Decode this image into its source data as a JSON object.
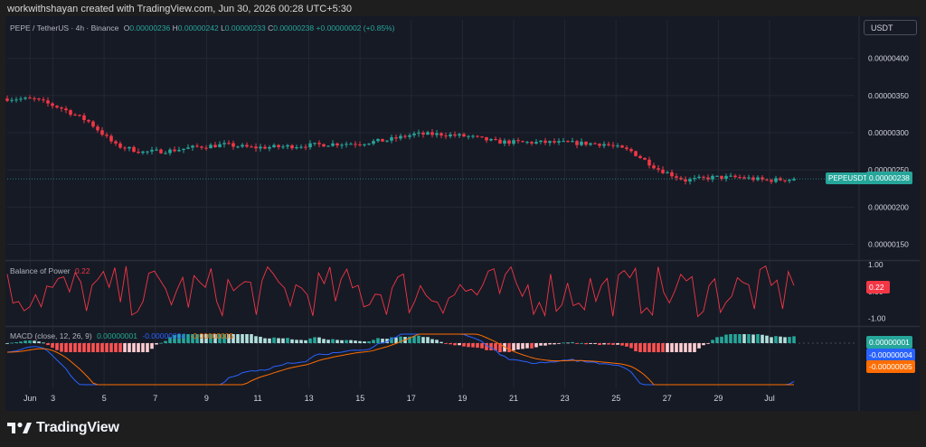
{
  "header": {
    "author_line": "workwithshayan created with TradingView.com, Jun 30, 2026 00:28 UTC+5:30"
  },
  "main_legend": {
    "symbol": "PEPE / TetherUS · 4h · Binance",
    "o_label": "O",
    "o_value": "0.00000236",
    "h_label": "H",
    "h_value": "0.00000242",
    "l_label": "L",
    "l_value": "0.00000233",
    "c_label": "C",
    "c_value": "0.00000238",
    "change": "+0.00000002 (+0.85%)"
  },
  "currency_button": "USDT",
  "price_axis": {
    "ticks": [
      "0.00000400",
      "0.00000350",
      "0.00000300",
      "0.00000250",
      "0.00000200",
      "0.00000150"
    ],
    "last_price": "0.00000238",
    "ticker_label": "PEPEUSDT"
  },
  "bop": {
    "title": "Balance of Power",
    "value": "0.22",
    "ticks": [
      "1.00",
      "0.00",
      "-1.00"
    ]
  },
  "macd": {
    "title": "MACD (close, 12, 26, 9)",
    "hist_value": "0.00000001",
    "macd_value": "-0.00000004",
    "signal_value": "-0.00000005",
    "tag_hist": "0.00000001",
    "tag_macd": "-0.00000004",
    "tag_signal": "-0.00000005"
  },
  "time_axis": {
    "labels": [
      "Jun",
      "3",
      "5",
      "7",
      "9",
      "11",
      "13",
      "15",
      "17",
      "19",
      "21",
      "23",
      "25",
      "27",
      "29",
      "Jul"
    ]
  },
  "footer": {
    "brand": "TradingView"
  },
  "colors": {
    "up": "#26a69a",
    "down": "#f23645",
    "bop_line": "#f23645",
    "macd_line": "#2962ff",
    "signal_line": "#ff6d00",
    "background": "#161a25"
  },
  "chart_data": [
    {
      "type": "candlestick",
      "title": "PEPE / TetherUS · 4h · Binance",
      "ylim": [
        1.3e-06,
        4.3e-06
      ],
      "x_labels": [
        "Jun",
        "3",
        "5",
        "7",
        "9",
        "11",
        "13",
        "15",
        "17",
        "19",
        "21",
        "23",
        "25",
        "27",
        "29",
        "Jul"
      ],
      "close_path": [
        [
          "Jun 1",
          3.46e-06
        ],
        [
          "Jun 2",
          3.45e-06
        ],
        [
          "Jun 3",
          3.33e-06
        ],
        [
          "Jun 4",
          3.15e-06
        ],
        [
          "Jun 5",
          2.83e-06
        ],
        [
          "Jun 6",
          2.74e-06
        ],
        [
          "Jun 7",
          2.76e-06
        ],
        [
          "Jun 8",
          2.81e-06
        ],
        [
          "Jun 9",
          2.84e-06
        ],
        [
          "Jun 10",
          2.8e-06
        ],
        [
          "Jun 11",
          2.81e-06
        ],
        [
          "Jun 12",
          2.83e-06
        ],
        [
          "Jun 13",
          2.85e-06
        ],
        [
          "Jun 14",
          2.86e-06
        ],
        [
          "Jun 15",
          2.9e-06
        ],
        [
          "Jun 16",
          2.98e-06
        ],
        [
          "Jun 17",
          2.98e-06
        ],
        [
          "Jun 18",
          2.95e-06
        ],
        [
          "Jun 19",
          2.88e-06
        ],
        [
          "Jun 20",
          2.87e-06
        ],
        [
          "Jun 21",
          2.87e-06
        ],
        [
          "Jun 22",
          2.86e-06
        ],
        [
          "Jun 23",
          2.85e-06
        ],
        [
          "Jun 24",
          2.75e-06
        ],
        [
          "Jun 25",
          2.51e-06
        ],
        [
          "Jun 26",
          2.36e-06
        ],
        [
          "Jun 27",
          2.4e-06
        ],
        [
          "Jun 28",
          2.4e-06
        ],
        [
          "Jun 29",
          2.36e-06
        ],
        [
          "Jun 30",
          2.38e-06
        ]
      ],
      "last": {
        "open": 2.36e-06,
        "high": 2.42e-06,
        "low": 2.33e-06,
        "close": 2.38e-06
      }
    },
    {
      "type": "line",
      "title": "Balance of Power",
      "ylim": [
        -1.25,
        1.1
      ],
      "y_ticks": [
        1.0,
        0.0,
        -1.0
      ],
      "last_value": 0.22
    },
    {
      "type": "histogram+line",
      "title": "MACD (close, 12, 26, 9)",
      "series": [
        {
          "name": "Histogram",
          "last": 1e-08
        },
        {
          "name": "MACD",
          "last": -4e-08
        },
        {
          "name": "Signal",
          "last": -5e-08
        }
      ]
    }
  ]
}
